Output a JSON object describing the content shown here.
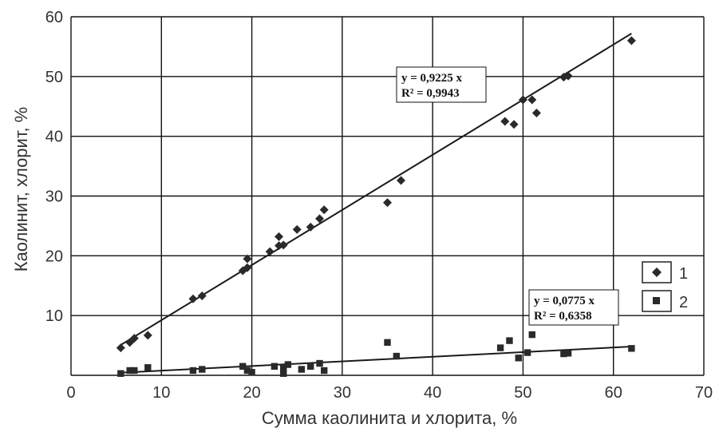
{
  "chart_data": {
    "type": "scatter",
    "xlabel": "Сумма каолинита и хлорита, %",
    "ylabel": "Каолинит, хлорит, %",
    "xlim": [
      0,
      70
    ],
    "ylim": [
      0,
      60
    ],
    "x_ticks": [
      "0",
      "10",
      "20",
      "30",
      "40",
      "50",
      "60",
      "70"
    ],
    "y_ticks": [
      "10",
      "20",
      "30",
      "40",
      "50",
      "60"
    ],
    "grid": true,
    "legend_position": "right",
    "series": [
      {
        "name": "1",
        "marker": "diamond",
        "color": "#2a2a2a",
        "points": [
          [
            5.5,
            4.6
          ],
          [
            6.5,
            5.5
          ],
          [
            7.0,
            6.2
          ],
          [
            8.5,
            6.7
          ],
          [
            13.5,
            12.8
          ],
          [
            14.5,
            13.3
          ],
          [
            19.0,
            17.5
          ],
          [
            19.5,
            18.0
          ],
          [
            19.5,
            19.5
          ],
          [
            22.0,
            20.7
          ],
          [
            23.0,
            21.7
          ],
          [
            23.5,
            21.8
          ],
          [
            23.0,
            23.2
          ],
          [
            25.0,
            24.4
          ],
          [
            26.5,
            24.8
          ],
          [
            27.5,
            26.2
          ],
          [
            28.0,
            27.7
          ],
          [
            35.0,
            28.9
          ],
          [
            36.5,
            32.6
          ],
          [
            48.0,
            42.5
          ],
          [
            49.0,
            42.0
          ],
          [
            50.0,
            46.1
          ],
          [
            51.0,
            46.1
          ],
          [
            51.5,
            43.9
          ],
          [
            54.5,
            49.9
          ],
          [
            55.0,
            50.1
          ],
          [
            62.0,
            56.0
          ]
        ],
        "trendline": {
          "equation": "y = 0,9225 x",
          "r2": "R² = 0,9943",
          "slope": 0.9225,
          "x_range": [
            5.5,
            62
          ]
        }
      },
      {
        "name": "2",
        "marker": "square",
        "color": "#2a2a2a",
        "points": [
          [
            5.5,
            0.3
          ],
          [
            6.5,
            0.8
          ],
          [
            7.0,
            0.8
          ],
          [
            8.5,
            1.3
          ],
          [
            13.5,
            0.8
          ],
          [
            14.5,
            1.0
          ],
          [
            19.0,
            1.5
          ],
          [
            19.5,
            0.8
          ],
          [
            20.0,
            0.5
          ],
          [
            22.5,
            1.5
          ],
          [
            23.5,
            1.2
          ],
          [
            24.0,
            1.8
          ],
          [
            23.5,
            0.3
          ],
          [
            25.5,
            1.0
          ],
          [
            26.5,
            1.5
          ],
          [
            27.5,
            2.0
          ],
          [
            28.0,
            0.8
          ],
          [
            35.0,
            5.5
          ],
          [
            36.0,
            3.2
          ],
          [
            47.5,
            4.6
          ],
          [
            48.5,
            5.8
          ],
          [
            49.5,
            2.9
          ],
          [
            50.5,
            3.8
          ],
          [
            51.0,
            6.8
          ],
          [
            54.5,
            3.6
          ],
          [
            55.0,
            3.7
          ],
          [
            62.0,
            4.5
          ]
        ],
        "trendline": {
          "equation": "y = 0,0775 x",
          "r2": "R² = 0,6358",
          "slope": 0.0775,
          "x_range": [
            5.5,
            62
          ]
        }
      }
    ]
  }
}
